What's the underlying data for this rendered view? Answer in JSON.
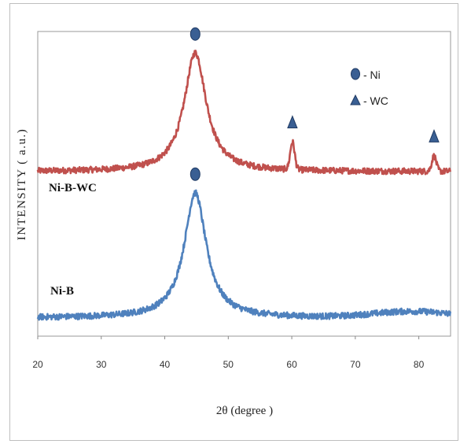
{
  "chart_data": {
    "type": "line",
    "xlabel": "2θ (degree )",
    "ylabel": "INTENSITY  ( a.u.)",
    "xlim": [
      20,
      85
    ],
    "x_ticks": [
      20,
      30,
      40,
      50,
      60,
      70,
      80
    ],
    "grid": false,
    "legend": {
      "position": "top-right",
      "entries": [
        {
          "marker": "circle",
          "label": "- Ni"
        },
        {
          "marker": "triangle",
          "label": "- WC"
        }
      ]
    },
    "colors": {
      "Ni-B-WC": "#c0504d",
      "Ni-B": "#4f81bd",
      "marker_fill": "#3a5f93",
      "marker_edge": "#1f3a63"
    },
    "series": [
      {
        "name": "Ni-B-WC",
        "baseline": 2.7,
        "noise": 0.05,
        "peaks": [
          {
            "center": 44.8,
            "height": 1.95,
            "width": 4.2,
            "shape": "lorentzian"
          },
          {
            "center": 60.1,
            "height": 0.45,
            "width": 0.35,
            "shape": "gaussian"
          },
          {
            "center": 82.4,
            "height": 0.25,
            "width": 0.35,
            "shape": "gaussian"
          }
        ]
      },
      {
        "name": "Ni-B",
        "baseline": 0.3,
        "noise": 0.05,
        "drift": [
          {
            "center": 79,
            "height": 0.1,
            "width": 6
          }
        ],
        "peaks": [
          {
            "center": 44.8,
            "height": 2.05,
            "width": 4.2,
            "shape": "lorentzian"
          }
        ]
      }
    ],
    "markers": [
      {
        "type": "circle",
        "x": 44.8,
        "series": "Ni-B-WC"
      },
      {
        "type": "triangle",
        "x": 60.1,
        "series": "Ni-B-WC"
      },
      {
        "type": "triangle",
        "x": 82.4,
        "series": "Ni-B-WC"
      },
      {
        "type": "circle",
        "x": 44.8,
        "series": "Ni-B"
      }
    ]
  }
}
